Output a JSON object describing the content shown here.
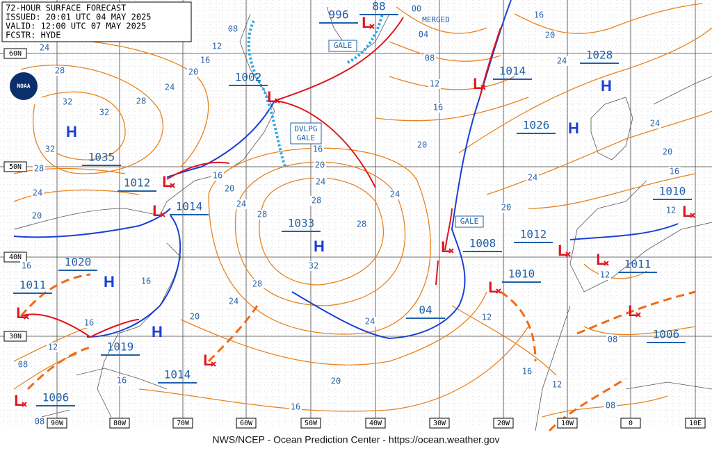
{
  "header": {
    "lines": [
      "72-HOUR SURFACE FORECAST",
      "ISSUED: 20:01 UTC 04 MAY 2025",
      "VALID: 12:00 UTC 07 MAY 2025",
      "FCSTR: HYDE"
    ]
  },
  "logo": "NOAA",
  "latitudes": [
    "60N",
    "50N",
    "40N",
    "30N"
  ],
  "longitudes": [
    "90W",
    "80W",
    "70W",
    "60W",
    "50W",
    "40W",
    "30W",
    "20W",
    "10W",
    "0",
    "10E"
  ],
  "centers": [
    "1002",
    "996",
    "88",
    "1014",
    "1028",
    "1026",
    "1035",
    "1012",
    "1014",
    "1033",
    "1020",
    "1011",
    "1019",
    "1014",
    "1006",
    "1008",
    "1012",
    "1010",
    "1011",
    "1006",
    "1010",
    "04"
  ],
  "highs": [
    "H",
    "H",
    "H",
    "H",
    "H",
    "H"
  ],
  "lows": [
    "L",
    "L",
    "L",
    "L",
    "L",
    "L",
    "L",
    "L",
    "L",
    "L",
    "L",
    "L",
    "L",
    "L"
  ],
  "isobar_labels": [
    "08",
    "12",
    "16",
    "20",
    "24",
    "28",
    "24",
    "28",
    "32",
    "32",
    "32",
    "28",
    "24",
    "20",
    "16",
    "12",
    "08",
    "08",
    "16",
    "16",
    "16",
    "20",
    "24",
    "28",
    "32",
    "28",
    "28",
    "24",
    "20",
    "16",
    "28",
    "24",
    "20",
    "16",
    "20",
    "16",
    "12",
    "08",
    "04",
    "00",
    "24",
    "24",
    "20",
    "16",
    "20",
    "24",
    "24",
    "20",
    "16",
    "24",
    "20",
    "16",
    "12",
    "12",
    "08",
    "08",
    "12",
    "16",
    "12"
  ],
  "boxes": [
    "GALE",
    "DVLPG",
    "GALE",
    "GALE"
  ],
  "merged": "MERGED",
  "footer": "NWS/NCEP - Ocean Prediction Center - https://ocean.weather.gov"
}
